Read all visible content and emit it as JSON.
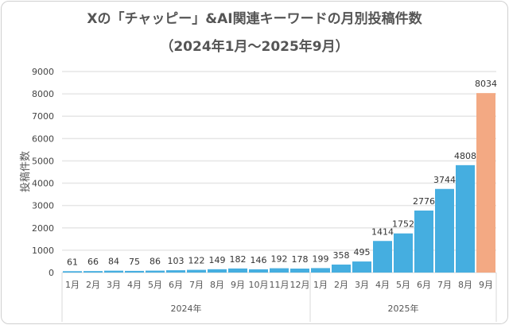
{
  "chart_data": {
    "type": "bar",
    "title": "Xの「チャッピー」&AI関連キーワードの月別投稿件数",
    "subtitle": "（2024年1月〜2025年9月）",
    "ylabel": "投稿件数",
    "xlabel": "",
    "ylim": [
      0,
      9000
    ],
    "yticks": [
      0,
      1000,
      2000,
      3000,
      4000,
      5000,
      6000,
      7000,
      8000,
      9000
    ],
    "grid": true,
    "legend": "none",
    "groups": [
      {
        "label": "2024年",
        "categories": [
          "1月",
          "2月",
          "3月",
          "4月",
          "5月",
          "6月",
          "7月",
          "8月",
          "9月",
          "10月",
          "11月",
          "12月"
        ],
        "values": [
          61,
          66,
          84,
          75,
          86,
          103,
          122,
          149,
          182,
          146,
          192,
          178
        ]
      },
      {
        "label": "2025年",
        "categories": [
          "1月",
          "2月",
          "3月",
          "4月",
          "5月",
          "6月",
          "7月",
          "8月",
          "9月"
        ],
        "values": [
          199,
          358,
          495,
          1414,
          1752,
          2776,
          3744,
          4808,
          8034
        ]
      }
    ],
    "colors": {
      "bar": "#45aee0",
      "highlight": "#f3a983",
      "highlight_category": "2025年9月"
    }
  }
}
